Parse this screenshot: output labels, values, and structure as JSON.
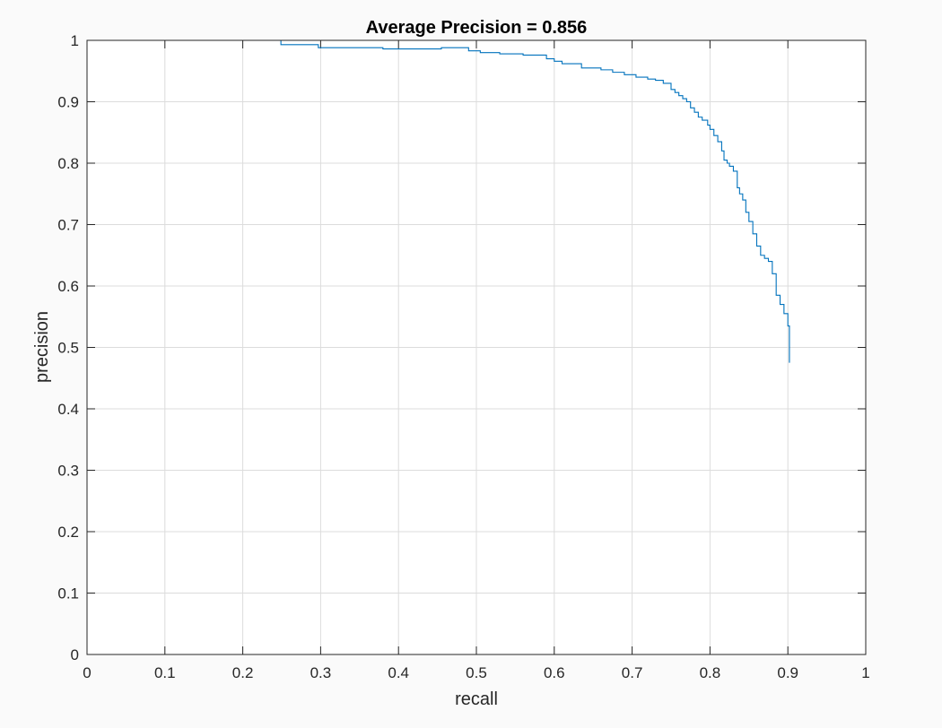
{
  "chart_data": {
    "type": "line",
    "title": "Average Precision = 0.856",
    "xlabel": "recall",
    "ylabel": "precision",
    "xlim": [
      0,
      1
    ],
    "ylim": [
      0,
      1
    ],
    "xticks": [
      "0",
      "0.1",
      "0.2",
      "0.3",
      "0.4",
      "0.5",
      "0.6",
      "0.7",
      "0.8",
      "0.9",
      "1"
    ],
    "yticks": [
      "0",
      "0.1",
      "0.2",
      "0.3",
      "0.4",
      "0.5",
      "0.6",
      "0.7",
      "0.8",
      "0.9",
      "1"
    ],
    "grid": true,
    "series": [
      {
        "color": "#0072bd",
        "x": [
          0,
          0.249,
          0.249,
          0.297,
          0.297,
          0.38,
          0.38,
          0.455,
          0.455,
          0.49,
          0.49,
          0.505,
          0.505,
          0.53,
          0.53,
          0.56,
          0.56,
          0.59,
          0.59,
          0.6,
          0.6,
          0.61,
          0.61,
          0.635,
          0.635,
          0.66,
          0.66,
          0.675,
          0.675,
          0.69,
          0.69,
          0.705,
          0.705,
          0.72,
          0.72,
          0.73,
          0.73,
          0.74,
          0.74,
          0.75,
          0.75,
          0.755,
          0.755,
          0.76,
          0.76,
          0.765,
          0.765,
          0.77,
          0.77,
          0.775,
          0.775,
          0.78,
          0.78,
          0.785,
          0.785,
          0.79,
          0.79,
          0.797,
          0.797,
          0.8,
          0.8,
          0.805,
          0.805,
          0.81,
          0.81,
          0.815,
          0.815,
          0.818,
          0.818,
          0.822,
          0.822,
          0.825,
          0.825,
          0.83,
          0.83,
          0.835,
          0.835,
          0.838,
          0.838,
          0.842,
          0.842,
          0.846,
          0.846,
          0.85,
          0.85,
          0.855,
          0.855,
          0.86,
          0.86,
          0.865,
          0.865,
          0.87,
          0.87,
          0.875,
          0.875,
          0.88,
          0.88,
          0.885,
          0.885,
          0.89,
          0.89,
          0.895,
          0.895,
          0.9,
          0.9,
          0.902,
          0.902
        ],
        "y": [
          1.0,
          1.0,
          0.993,
          0.993,
          0.988,
          0.988,
          0.986,
          0.986,
          0.988,
          0.988,
          0.983,
          0.983,
          0.98,
          0.98,
          0.978,
          0.978,
          0.976,
          0.976,
          0.97,
          0.97,
          0.966,
          0.966,
          0.962,
          0.962,
          0.955,
          0.955,
          0.952,
          0.952,
          0.948,
          0.948,
          0.944,
          0.944,
          0.94,
          0.94,
          0.937,
          0.937,
          0.935,
          0.935,
          0.93,
          0.93,
          0.92,
          0.92,
          0.915,
          0.915,
          0.91,
          0.91,
          0.905,
          0.905,
          0.9,
          0.9,
          0.89,
          0.89,
          0.883,
          0.883,
          0.875,
          0.875,
          0.87,
          0.87,
          0.862,
          0.862,
          0.855,
          0.855,
          0.845,
          0.845,
          0.835,
          0.835,
          0.82,
          0.82,
          0.805,
          0.805,
          0.8,
          0.8,
          0.795,
          0.795,
          0.787,
          0.787,
          0.76,
          0.76,
          0.75,
          0.75,
          0.74,
          0.74,
          0.72,
          0.72,
          0.705,
          0.705,
          0.685,
          0.685,
          0.665,
          0.665,
          0.65,
          0.65,
          0.645,
          0.645,
          0.64,
          0.64,
          0.62,
          0.62,
          0.585,
          0.585,
          0.57,
          0.57,
          0.555,
          0.555,
          0.535,
          0.535,
          0.475
        ]
      }
    ]
  }
}
